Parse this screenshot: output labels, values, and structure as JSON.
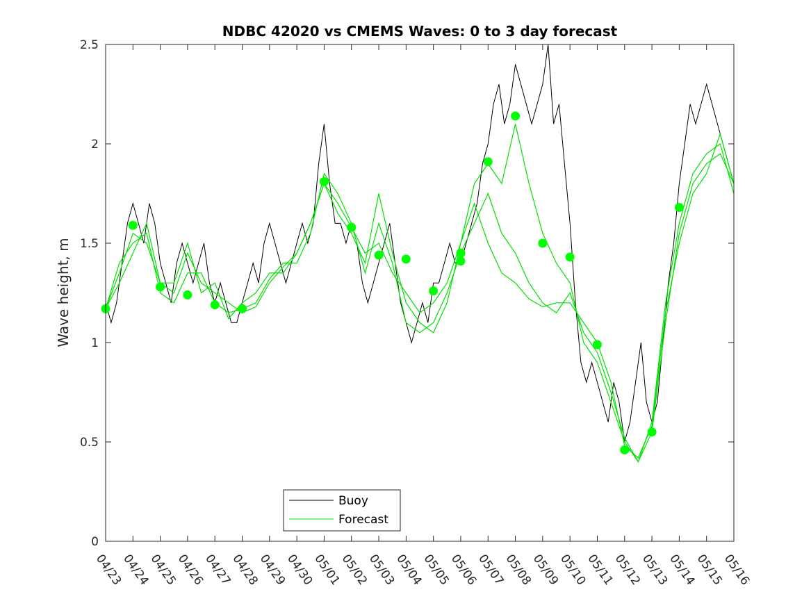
{
  "chart_data": {
    "type": "line",
    "title": "NDBC 42020 vs CMEMS Waves: 0 to 3 day forecast",
    "ylabel": "Wave height, m",
    "xlabel": "",
    "ylim": [
      0,
      2.5
    ],
    "yticks": [
      0,
      0.5,
      1,
      1.5,
      2,
      2.5
    ],
    "ytick_labels": [
      "0",
      "0.5",
      "1",
      "1.5",
      "2",
      "2.5"
    ],
    "xlim_days": [
      0,
      23
    ],
    "xtick_labels": [
      "04/23",
      "04/24",
      "04/25",
      "04/26",
      "04/27",
      "04/28",
      "04/29",
      "04/30",
      "05/01",
      "05/02",
      "05/03",
      "05/04",
      "05/05",
      "05/06",
      "05/07",
      "05/08",
      "05/09",
      "05/10",
      "05/11",
      "05/12",
      "05/13",
      "05/14",
      "05/15",
      "05/16"
    ],
    "legend": {
      "position": "bottom-center",
      "entries": [
        {
          "label": "Buoy",
          "color": "#000000"
        },
        {
          "label": "Forecast",
          "color": "#00e000"
        }
      ]
    },
    "colors": {
      "buoy": "#000000",
      "forecast": "#00e000",
      "dots": "#00ff00"
    },
    "series": [
      {
        "name": "Buoy",
        "color": "#000000",
        "x_days": [
          0,
          0.2,
          0.4,
          0.6,
          0.8,
          1,
          1.2,
          1.4,
          1.6,
          1.8,
          2,
          2.2,
          2.4,
          2.6,
          2.8,
          3,
          3.2,
          3.4,
          3.6,
          3.8,
          4,
          4.2,
          4.4,
          4.6,
          4.8,
          5,
          5.2,
          5.4,
          5.6,
          5.8,
          6,
          6.2,
          6.4,
          6.6,
          6.8,
          7,
          7.2,
          7.4,
          7.6,
          7.8,
          8,
          8.2,
          8.4,
          8.6,
          8.8,
          9,
          9.2,
          9.4,
          9.6,
          9.8,
          10,
          10.2,
          10.4,
          10.6,
          10.8,
          11,
          11.2,
          11.4,
          11.6,
          11.8,
          12,
          12.2,
          12.4,
          12.6,
          12.8,
          13,
          13.2,
          13.4,
          13.6,
          13.8,
          14,
          14.2,
          14.4,
          14.6,
          14.8,
          15,
          15.2,
          15.4,
          15.6,
          15.8,
          16,
          16.2,
          16.4,
          16.6,
          16.8,
          17,
          17.2,
          17.4,
          17.6,
          17.8,
          18,
          18.2,
          18.4,
          18.6,
          18.8,
          19,
          19.2,
          19.4,
          19.6,
          19.8,
          20,
          20.2,
          20.4,
          20.6,
          20.8,
          21,
          21.2,
          21.4,
          21.6,
          21.8,
          22,
          22.2,
          22.4,
          22.6,
          22.8,
          23
        ],
        "values": [
          1.2,
          1.1,
          1.2,
          1.4,
          1.6,
          1.7,
          1.6,
          1.5,
          1.7,
          1.6,
          1.4,
          1.3,
          1.2,
          1.4,
          1.5,
          1.4,
          1.3,
          1.4,
          1.5,
          1.3,
          1.2,
          1.3,
          1.2,
          1.1,
          1.1,
          1.2,
          1.3,
          1.4,
          1.3,
          1.5,
          1.6,
          1.5,
          1.4,
          1.3,
          1.4,
          1.5,
          1.6,
          1.5,
          1.6,
          1.9,
          2.1,
          1.8,
          1.6,
          1.6,
          1.5,
          1.6,
          1.5,
          1.3,
          1.2,
          1.3,
          1.4,
          1.5,
          1.6,
          1.4,
          1.2,
          1.1,
          1.0,
          1.1,
          1.2,
          1.1,
          1.3,
          1.3,
          1.4,
          1.5,
          1.4,
          1.4,
          1.5,
          1.6,
          1.7,
          1.9,
          2.0,
          2.2,
          2.3,
          2.1,
          2.2,
          2.4,
          2.3,
          2.2,
          2.1,
          2.2,
          2.3,
          2.5,
          2.1,
          2.2,
          1.9,
          1.6,
          1.2,
          0.9,
          0.8,
          0.9,
          0.8,
          0.7,
          0.6,
          0.8,
          0.7,
          0.5,
          0.6,
          0.8,
          1.0,
          0.7,
          0.6,
          0.7,
          1.0,
          1.3,
          1.5,
          1.8,
          2.0,
          2.2,
          2.1,
          2.2,
          2.3,
          2.2,
          2.1,
          2.0,
          1.9,
          1.8
        ]
      },
      {
        "name": "Forecast",
        "color": "#00e000",
        "x_days": [
          0,
          0.5,
          1,
          1.5,
          2,
          2.5,
          3,
          3.5,
          4,
          4.5,
          5,
          5.5,
          6,
          6.5,
          7,
          7.5,
          8,
          8.5,
          9,
          9.5,
          10,
          10.5,
          11,
          11.5,
          12,
          12.5,
          13,
          13.5,
          14,
          14.5,
          15,
          15.5,
          16,
          16.5,
          17,
          17.5,
          18,
          18.5,
          19,
          19.5,
          20,
          20.5,
          21,
          21.5,
          22,
          22.5,
          23
        ],
        "values": [
          1.17,
          1.35,
          1.55,
          1.5,
          1.3,
          1.25,
          1.45,
          1.3,
          1.25,
          1.2,
          1.15,
          1.18,
          1.3,
          1.38,
          1.45,
          1.6,
          1.8,
          1.7,
          1.58,
          1.45,
          1.5,
          1.35,
          1.25,
          1.15,
          1.2,
          1.3,
          1.5,
          1.8,
          1.9,
          1.8,
          2.1,
          1.8,
          1.55,
          1.4,
          1.3,
          1.0,
          0.9,
          0.7,
          0.5,
          0.4,
          0.6,
          1.2,
          1.6,
          1.85,
          1.95,
          2.0,
          1.75
        ]
      },
      {
        "name": "Forecast",
        "color": "#00e000",
        "x_days": [
          0,
          0.5,
          1,
          1.5,
          2,
          2.5,
          3,
          3.5,
          4,
          4.5,
          5,
          5.5,
          6,
          6.5,
          7,
          7.5,
          8,
          8.5,
          9,
          9.5,
          10,
          10.5,
          11,
          11.5,
          12,
          12.5,
          13,
          13.5,
          14,
          14.5,
          15,
          15.5,
          16,
          16.5,
          17,
          17.5,
          18,
          18.5,
          19,
          19.5,
          20,
          20.5,
          21,
          21.5,
          22,
          22.5,
          23
        ],
        "values": [
          1.17,
          1.4,
          1.5,
          1.55,
          1.25,
          1.2,
          1.35,
          1.35,
          1.2,
          1.15,
          1.17,
          1.2,
          1.32,
          1.4,
          1.4,
          1.55,
          1.85,
          1.75,
          1.6,
          1.35,
          1.6,
          1.4,
          1.1,
          1.05,
          1.1,
          1.25,
          1.45,
          1.6,
          1.75,
          1.55,
          1.45,
          1.3,
          1.2,
          1.15,
          1.25,
          1.05,
          0.95,
          0.75,
          0.52,
          0.4,
          0.55,
          1.1,
          1.55,
          1.8,
          1.9,
          1.95,
          1.8
        ]
      },
      {
        "name": "Forecast",
        "color": "#00e000",
        "x_days": [
          0,
          0.5,
          1,
          1.5,
          2,
          2.5,
          3,
          3.5,
          4,
          4.5,
          5,
          5.5,
          6,
          6.5,
          7,
          7.5,
          8,
          8.5,
          9,
          9.5,
          10,
          10.5,
          11,
          11.5,
          12,
          12.5,
          13,
          13.5,
          14,
          14.5,
          15,
          15.5,
          16,
          16.5,
          17,
          17.5,
          18,
          18.5,
          19,
          19.5,
          20,
          20.5,
          21,
          21.5,
          22,
          22.5,
          23
        ],
        "values": [
          1.17,
          1.3,
          1.45,
          1.6,
          1.3,
          1.3,
          1.5,
          1.25,
          1.3,
          1.12,
          1.2,
          1.25,
          1.35,
          1.35,
          1.45,
          1.6,
          1.8,
          1.65,
          1.55,
          1.4,
          1.75,
          1.45,
          1.2,
          1.1,
          1.05,
          1.2,
          1.5,
          1.7,
          1.5,
          1.35,
          1.3,
          1.22,
          1.18,
          1.2,
          1.2,
          1.1,
          1.0,
          0.8,
          0.48,
          0.42,
          0.58,
          1.15,
          1.5,
          1.75,
          1.85,
          2.05,
          1.8
        ]
      }
    ],
    "markers": {
      "name": "Forecast",
      "color": "#00ff00",
      "x_days": [
        0,
        1,
        2,
        3,
        4,
        5,
        8,
        9,
        10,
        11,
        12,
        13,
        13,
        14,
        15,
        16,
        17,
        18,
        19,
        20,
        21
      ],
      "values": [
        1.17,
        1.59,
        1.28,
        1.24,
        1.19,
        1.17,
        1.81,
        1.58,
        1.44,
        1.42,
        1.26,
        1.45,
        1.41,
        1.91,
        2.14,
        1.5,
        1.43,
        0.99,
        0.46,
        0.55,
        1.68
      ]
    }
  }
}
